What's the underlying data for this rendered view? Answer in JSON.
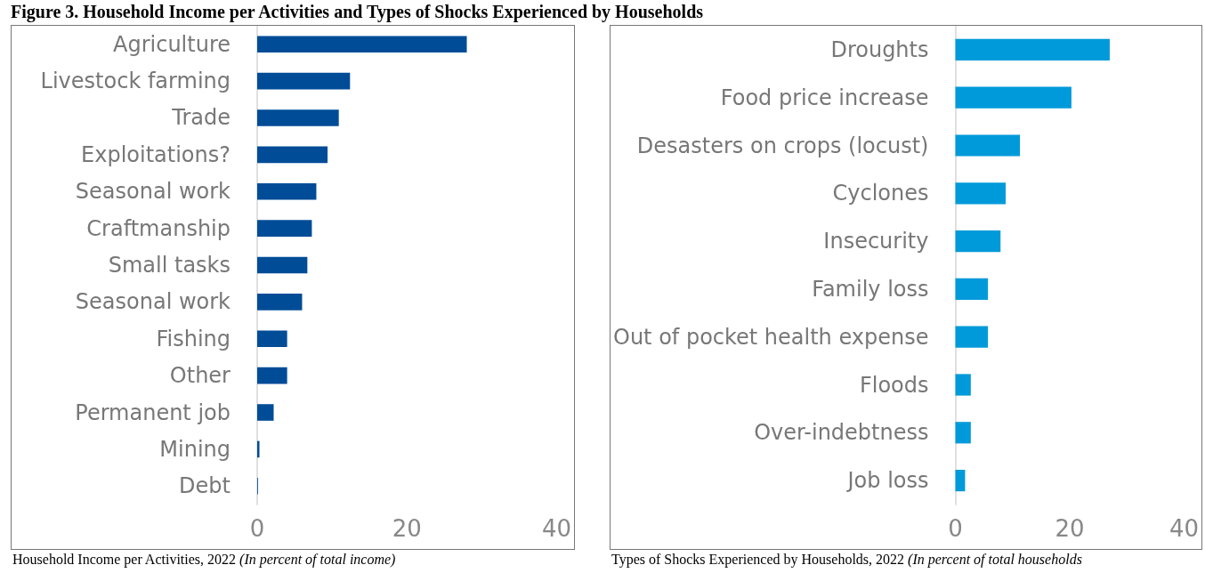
{
  "chart_data": [
    {
      "type": "bar",
      "orientation": "horizontal",
      "title": "Figure 3. Household Income per Activities and Types of Shocks Experienced by Households",
      "categories": [
        "Agriculture",
        "Livestock farming",
        "Trade",
        "Exploitations?",
        "Seasonal work",
        "Craftmanship",
        "Small tasks",
        "Seasonal work",
        "Fishing",
        "Other",
        "Permanent job",
        "Mining",
        "Debt"
      ],
      "values": [
        28,
        12.4,
        10.9,
        9.4,
        7.9,
        7.3,
        6.7,
        6,
        4,
        4,
        2.2,
        0.3,
        0.1
      ],
      "color": "#004c97",
      "xlim": [
        0,
        40
      ],
      "xticks": [
        0,
        20,
        40
      ],
      "grid": false,
      "annotations": [
        "Household Income per Activities, 2022 (In percent of total income)"
      ]
    },
    {
      "type": "bar",
      "orientation": "horizontal",
      "categories": [
        "Droughts",
        "Food price increase",
        "Desasters on crops (locust)",
        "Cyclones",
        "Insecurity",
        "Family loss",
        "Out of pocket health expense",
        "Floods",
        "Over-indebtness",
        "Job loss"
      ],
      "values": [
        27,
        20.3,
        11.3,
        8.8,
        7.9,
        5.7,
        5.7,
        2.7,
        2.7,
        1.7
      ],
      "color": "#009ada",
      "xlim": [
        0,
        40
      ],
      "xticks": [
        0,
        20,
        40
      ],
      "grid": false,
      "annotations": [
        "Types of Shocks Experienced by Households, 2022 (In percent of total households"
      ]
    }
  ]
}
